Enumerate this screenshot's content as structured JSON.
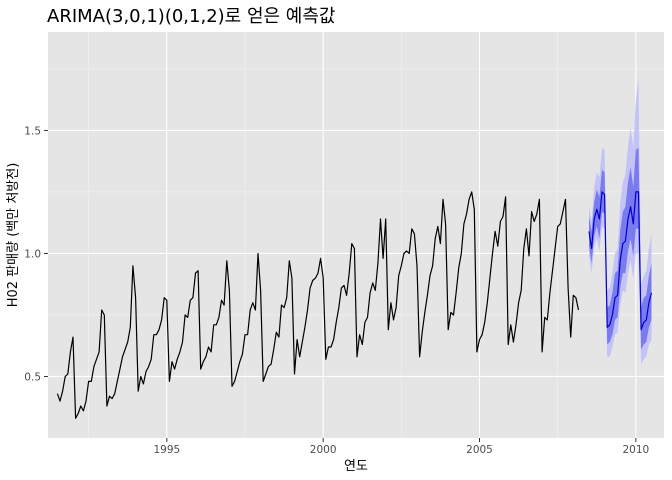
{
  "chart_data": {
    "type": "line",
    "title": "ARIMA(3,0,1)(0,1,2)로 얻은 예측값",
    "xlabel": "연도",
    "ylabel": "H02 판매량 (백만 처방전)",
    "xlim": [
      1991.2,
      2010.9
    ],
    "ylim": [
      0.25,
      1.9
    ],
    "x_ticks": [
      1995,
      2000,
      2005,
      2010
    ],
    "x_tick_labels": [
      "1995",
      "2000",
      "2005",
      "2010"
    ],
    "y_ticks": [
      0.5,
      1.0,
      1.5
    ],
    "y_tick_labels": [
      "0.5",
      "1.0",
      "1.5"
    ],
    "grid": true,
    "background": "#e5e5e5",
    "colors": {
      "history": "#000000",
      "forecast": "#0000cc",
      "band80": "#7b7bf0",
      "band95": "#c3c3f8"
    },
    "series": [
      {
        "start": 1991.5,
        "step": 0.0833333,
        "values": [
          0.43,
          0.4,
          0.44,
          0.5,
          0.51,
          0.6,
          0.66,
          0.33,
          0.35,
          0.38,
          0.36,
          0.4,
          0.48,
          0.48,
          0.54,
          0.57,
          0.6,
          0.77,
          0.75,
          0.38,
          0.42,
          0.41,
          0.43,
          0.48,
          0.53,
          0.58,
          0.61,
          0.64,
          0.7,
          0.95,
          0.82,
          0.44,
          0.5,
          0.47,
          0.52,
          0.54,
          0.57,
          0.67,
          0.67,
          0.69,
          0.73,
          0.82,
          0.81,
          0.48,
          0.56,
          0.53,
          0.57,
          0.6,
          0.64,
          0.75,
          0.74,
          0.81,
          0.82,
          0.92,
          0.93,
          0.53,
          0.56,
          0.58,
          0.62,
          0.6,
          0.71,
          0.71,
          0.74,
          0.81,
          0.79,
          0.97,
          0.85,
          0.46,
          0.48,
          0.52,
          0.56,
          0.59,
          0.67,
          0.67,
          0.77,
          0.8,
          0.77,
          1.0,
          0.85,
          0.48,
          0.51,
          0.54,
          0.55,
          0.61,
          0.68,
          0.66,
          0.79,
          0.78,
          0.82,
          0.97,
          0.9,
          0.51,
          0.65,
          0.58,
          0.64,
          0.7,
          0.77,
          0.86,
          0.89,
          0.9,
          0.92,
          0.98,
          0.9,
          0.57,
          0.62,
          0.62,
          0.65,
          0.72,
          0.78,
          0.86,
          0.87,
          0.83,
          0.92,
          1.04,
          1.02,
          0.58,
          0.67,
          0.63,
          0.72,
          0.74,
          0.84,
          0.88,
          0.85,
          0.96,
          1.14,
          0.98,
          1.14,
          0.69,
          0.8,
          0.73,
          0.78,
          0.91,
          0.95,
          1.0,
          1.01,
          1.0,
          1.1,
          1.08,
          0.95,
          0.58,
          0.68,
          0.76,
          0.83,
          0.91,
          0.95,
          1.06,
          1.11,
          1.04,
          1.22,
          1.12,
          0.69,
          0.76,
          0.75,
          0.84,
          0.94,
          1.0,
          1.12,
          1.16,
          1.22,
          1.25,
          1.18,
          0.6,
          0.65,
          0.67,
          0.72,
          0.8,
          0.9,
          1.0,
          1.09,
          1.03,
          1.13,
          1.15,
          1.23,
          0.63,
          0.71,
          0.64,
          0.71,
          0.8,
          0.85,
          1.02,
          1.1,
          0.99,
          1.17,
          1.13,
          1.16,
          1.22,
          0.6,
          0.74,
          0.73,
          0.84,
          0.93,
          1.02,
          1.11,
          1.12,
          1.17,
          1.22,
          0.86,
          0.66,
          0.83,
          0.82,
          0.77
        ]
      },
      {
        "start": 2008.5,
        "step": 0.0833333,
        "values": [
          1.09,
          1.02,
          1.14,
          1.18,
          1.14,
          1.25,
          1.24,
          0.7,
          0.71,
          0.75,
          0.82,
          0.83,
          0.97,
          1.04,
          1.05,
          1.14,
          1.19,
          1.12,
          1.25,
          1.25,
          0.69,
          0.72,
          0.73,
          0.8,
          0.84
        ],
        "lo80": [
          1.03,
          0.96,
          1.07,
          1.11,
          1.06,
          1.17,
          1.16,
          0.63,
          0.64,
          0.67,
          0.73,
          0.74,
          0.86,
          0.92,
          0.92,
          1.01,
          1.06,
          0.99,
          1.1,
          1.1,
          0.61,
          0.63,
          0.64,
          0.7,
          0.73
        ],
        "hi80": [
          1.15,
          1.09,
          1.21,
          1.26,
          1.23,
          1.34,
          1.33,
          0.78,
          0.79,
          0.84,
          0.92,
          0.93,
          1.09,
          1.17,
          1.19,
          1.29,
          1.35,
          1.27,
          1.42,
          1.43,
          0.78,
          0.82,
          0.83,
          0.91,
          0.96
        ],
        "lo95": [
          0.99,
          0.92,
          1.03,
          1.06,
          1.01,
          1.11,
          1.1,
          0.58,
          0.58,
          0.62,
          0.67,
          0.68,
          0.79,
          0.85,
          0.84,
          0.92,
          0.97,
          0.9,
          1.0,
          1.0,
          0.55,
          0.57,
          0.58,
          0.63,
          0.65
        ],
        "hi95": [
          1.19,
          1.13,
          1.27,
          1.33,
          1.31,
          1.43,
          1.42,
          0.85,
          0.86,
          0.92,
          1.0,
          1.02,
          1.2,
          1.29,
          1.32,
          1.44,
          1.51,
          1.43,
          1.62,
          1.72,
          0.87,
          0.91,
          0.93,
          1.02,
          1.08
        ]
      }
    ]
  }
}
